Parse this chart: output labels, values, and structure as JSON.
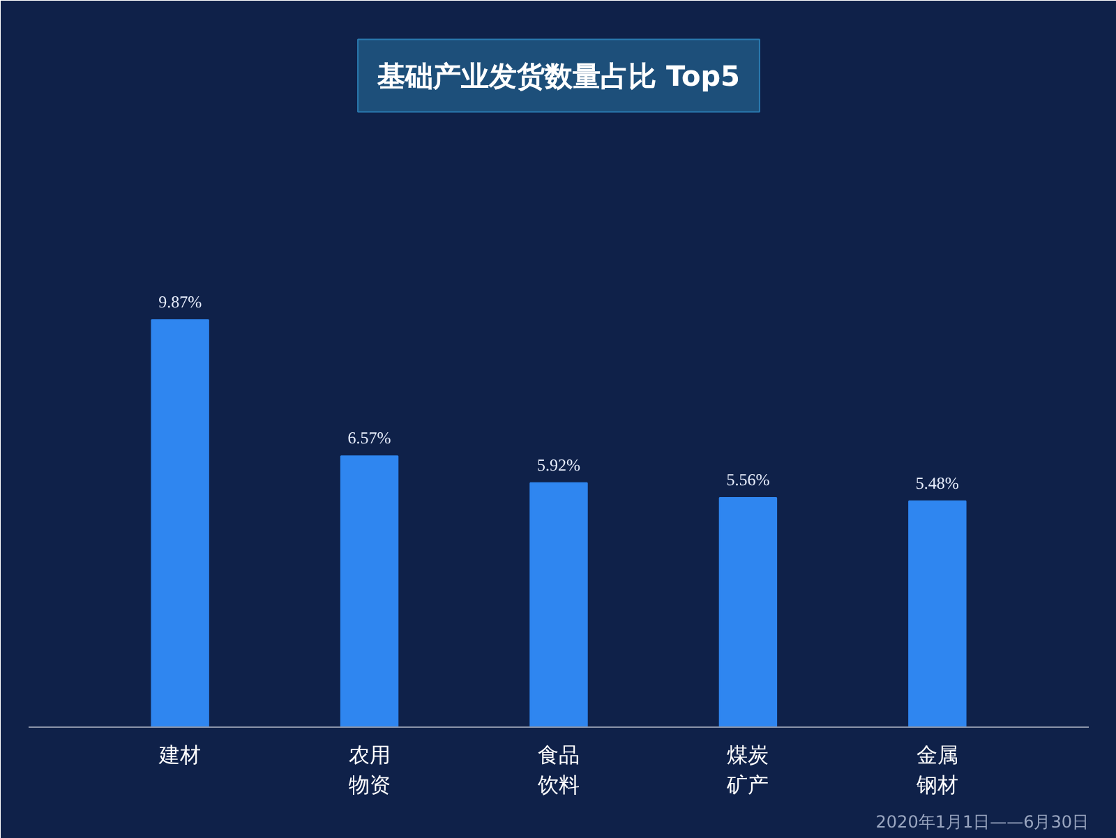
{
  "chart_data": {
    "type": "bar",
    "title": "基础产业发货数量占比 Top5",
    "categories": [
      "建材",
      "农用物资",
      "食品饮料",
      "煤炭矿产",
      "金属钢材"
    ],
    "values": [
      9.87,
      6.57,
      5.92,
      5.56,
      5.48
    ],
    "value_labels": [
      "9.87%",
      "6.57%",
      "5.92%",
      "5.56%",
      "5.48%"
    ],
    "color": "#2f86f0",
    "grid": false,
    "annotations": [
      "2020年1月1日——6月30日"
    ]
  }
}
